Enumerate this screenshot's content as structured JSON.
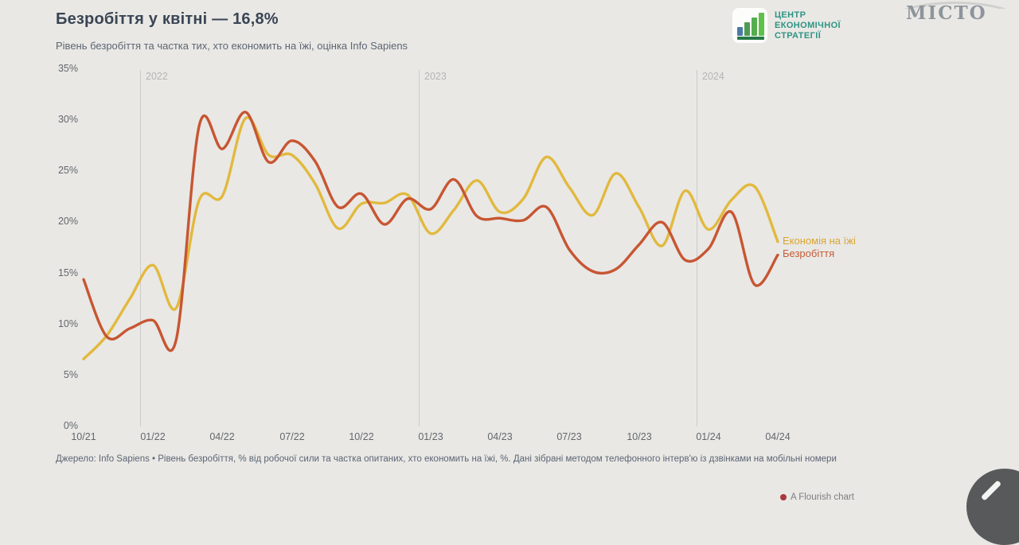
{
  "header": {
    "title": "Безробіття у квітні — 16,8%",
    "subtitle": "Рівень безробіття та частка тих, хто економить на їжі, оцінка Info Sapiens"
  },
  "logos": {
    "ces": {
      "line1": "ЦЕНТР",
      "line2": "ЕКОНОМІЧНОЇ",
      "line3": "СТРАТЕГІЇ",
      "accent_color": "#2e9483"
    },
    "misto": "МІСТО"
  },
  "chart_data": {
    "type": "line",
    "title": "Безробіття у квітні — 16,8%",
    "subtitle": "Рівень безробіття та частка тих, хто економить на їжі, оцінка Info Sapiens",
    "x_unit": "monthly, 10/2021 – 04/2024",
    "x_monthly": [
      "10/21",
      "11/21",
      "12/21",
      "01/22",
      "02/22",
      "03/22",
      "04/22",
      "05/22",
      "06/22",
      "07/22",
      "08/22",
      "09/22",
      "10/22",
      "11/22",
      "12/22",
      "01/23",
      "02/23",
      "03/23",
      "04/23",
      "05/23",
      "06/23",
      "07/23",
      "08/23",
      "09/23",
      "10/23",
      "11/23",
      "12/23",
      "01/24",
      "02/24",
      "03/24",
      "04/24"
    ],
    "x_tick_labels": [
      "10/21",
      "01/22",
      "04/22",
      "07/22",
      "10/22",
      "01/23",
      "04/23",
      "07/23",
      "10/23",
      "01/24",
      "04/24"
    ],
    "y_ticks": [
      "35%",
      "30%",
      "25%",
      "20%",
      "15%",
      "10%",
      "5%",
      "0%"
    ],
    "ylim": [
      0,
      35
    ],
    "grid": "vertical year lines only",
    "year_markers": [
      "2022",
      "2023",
      "2024"
    ],
    "legend_position": "end-of-line labels, right side",
    "series": [
      {
        "name": "Економія на їжі",
        "color": "#e2b93e",
        "values": [
          6.6,
          8.9,
          12.5,
          15.8,
          11.6,
          22.2,
          22.6,
          30.2,
          26.6,
          26.6,
          23.8,
          19.4,
          21.8,
          21.9,
          22.7,
          18.9,
          21.2,
          24.1,
          21.0,
          22.3,
          26.4,
          23.4,
          20.7,
          24.8,
          21.5,
          17.7,
          23.1,
          19.3,
          22.2,
          23.5,
          18.1
        ]
      },
      {
        "name": "Безробіття",
        "color": "#c75632",
        "values": [
          14.4,
          8.8,
          9.6,
          10.4,
          8.5,
          29.5,
          27.2,
          30.8,
          25.9,
          28.0,
          26.0,
          21.5,
          22.8,
          19.8,
          22.3,
          21.3,
          24.2,
          20.6,
          20.4,
          20.2,
          21.5,
          17.3,
          15.2,
          15.4,
          17.8,
          20.0,
          16.3,
          17.4,
          21.0,
          13.9,
          16.8
        ]
      }
    ]
  },
  "footer": {
    "source": "Джерело: Info Sapiens • Рівень безробіття, % від робочої сили та частка опитаних, хто економить на їжі, %. Дані зібрані методом телефонного інтерв'ю із дзвінками на мобільні номери"
  },
  "attribution": {
    "label": "A Flourish chart"
  }
}
